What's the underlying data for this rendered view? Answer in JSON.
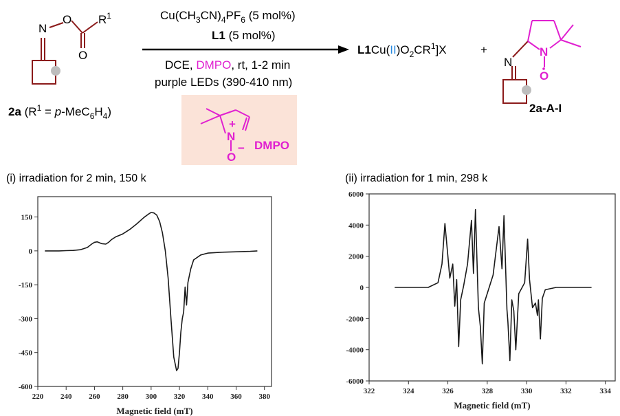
{
  "scheme": {
    "reagent_line1": [
      "Cu(CH",
      "3",
      "CN)",
      "4",
      "PF",
      "6",
      " (5 mol%)"
    ],
    "reagent_line2": [
      "L1",
      " (5 mol%)"
    ],
    "conditions_line1": [
      "DCE, ",
      "DMPO",
      ", rt, 1-2 min"
    ],
    "conditions_line2": "purple LEDs (390-410 nm)",
    "substrate_label": [
      "2a",
      " (R",
      "1",
      " = ",
      "p",
      "-MeC",
      "6",
      "H",
      "4",
      ")"
    ],
    "substrate_r1": [
      "R",
      "1"
    ],
    "product_cu": [
      "L1",
      "Cu(",
      "II",
      ")O",
      "2",
      "CR",
      "1",
      "]X"
    ],
    "plus": "+",
    "product_label": "2a-A-I",
    "dmpo_label": "DMPO",
    "dmpo_n_charge": "+",
    "dmpo_o_charge": "−",
    "atom_N": "N",
    "atom_O": "O",
    "colors": {
      "dark_red": "#8b1a1a",
      "magenta": "#e020d0",
      "blue": "#2a8be0",
      "box_fill": "#fbe3d8"
    }
  },
  "panels": {
    "left_caption": "(i) irradiation for 2 min, 150 k",
    "right_caption": "(ii) irradiation for 1 min, 298 k"
  },
  "chart_data": [
    {
      "type": "line",
      "title": "(i) irradiation for 2 min, 150 k",
      "xlabel": "Magnetic field (mT)",
      "ylabel": "",
      "xlim": [
        220,
        385
      ],
      "ylim": [
        -600,
        240
      ],
      "xticks": [
        220,
        240,
        260,
        280,
        300,
        320,
        340,
        360,
        380
      ],
      "yticks": [
        -600,
        -450,
        -300,
        -150,
        0,
        150
      ],
      "grid": false,
      "series": [
        {
          "x": [
            225,
            230,
            235,
            240,
            245,
            250,
            255,
            258,
            260,
            262,
            265,
            268,
            270,
            272,
            275,
            280,
            285,
            290,
            295,
            298,
            300,
            302,
            304,
            306,
            308,
            310,
            312,
            314,
            316,
            318,
            319,
            320,
            321,
            322,
            323,
            324,
            325,
            326,
            328,
            330,
            335,
            340,
            350,
            360,
            370,
            375
          ],
          "y": [
            0,
            0,
            0,
            1,
            2,
            5,
            15,
            30,
            38,
            40,
            32,
            30,
            38,
            50,
            62,
            75,
            95,
            120,
            148,
            162,
            170,
            168,
            158,
            130,
            80,
            0,
            -120,
            -300,
            -470,
            -530,
            -520,
            -450,
            -360,
            -300,
            -270,
            -160,
            -240,
            -140,
            -80,
            -40,
            -18,
            -10,
            -6,
            -4,
            -2,
            0
          ]
        }
      ]
    },
    {
      "type": "line",
      "title": "(ii) irradiation for 1 min, 298 k",
      "xlabel": "Magnetic field (mT)",
      "ylabel": "",
      "xlim": [
        322,
        334.5
      ],
      "ylim": [
        -6000,
        6000
      ],
      "xticks": [
        322,
        324,
        326,
        328,
        330,
        332,
        334
      ],
      "yticks": [
        -6000,
        -4000,
        -2000,
        0,
        2000,
        4000,
        6000
      ],
      "grid": false,
      "series": [
        {
          "x": [
            323.3,
            325.0,
            325.5,
            325.7,
            325.85,
            326.0,
            326.1,
            326.25,
            326.35,
            326.45,
            326.55,
            326.65,
            326.8,
            327.0,
            327.2,
            327.3,
            327.4,
            327.55,
            327.65,
            327.75,
            327.85,
            328.0,
            328.3,
            328.6,
            328.75,
            328.85,
            329.0,
            329.05,
            329.15,
            329.25,
            329.35,
            329.45,
            329.6,
            329.9,
            330.05,
            330.15,
            330.3,
            330.45,
            330.55,
            330.6,
            330.7,
            330.8,
            330.95,
            331.5,
            332.5,
            333.3
          ],
          "y": [
            0,
            0,
            300,
            1500,
            4100,
            2000,
            600,
            1500,
            -1200,
            500,
            -3800,
            -800,
            100,
            1500,
            4300,
            900,
            5000,
            -1300,
            -2500,
            -4900,
            -1000,
            -400,
            800,
            3900,
            1200,
            4600,
            -1400,
            -2200,
            -4700,
            -800,
            -1500,
            -4000,
            -400,
            300,
            3100,
            500,
            -1300,
            -1000,
            -1800,
            -800,
            -3300,
            -700,
            -150,
            0,
            0,
            0
          ]
        }
      ]
    }
  ]
}
